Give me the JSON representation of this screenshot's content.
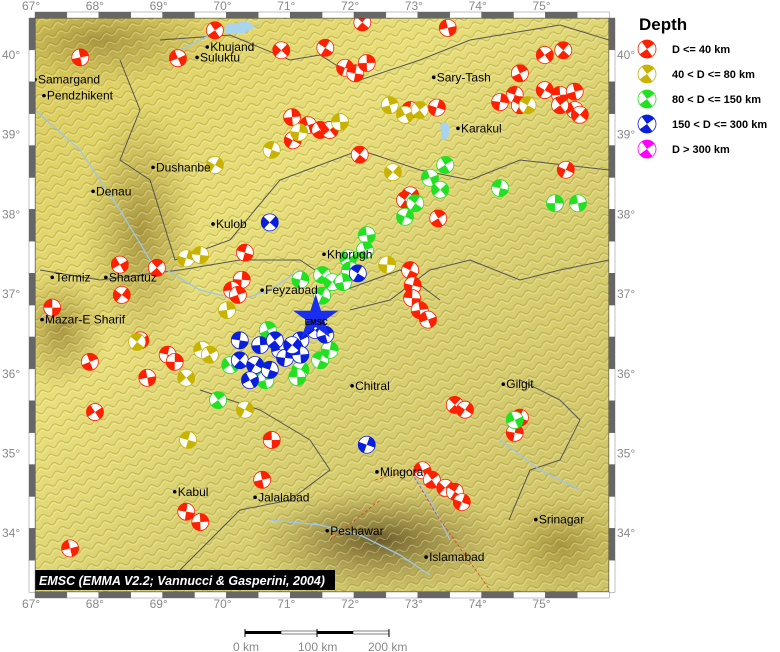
{
  "legend": {
    "title": "Depth",
    "items": [
      {
        "label": "D <= 40 km",
        "color": "#ff2000",
        "class": "r"
      },
      {
        "label": "40 < D <= 80 km",
        "color": "#c8b400",
        "class": "y"
      },
      {
        "label": "80 < D <= 150 km",
        "color": "#22e022",
        "class": "g"
      },
      {
        "label": "150 < D <= 300 km",
        "color": "#0a1ee0",
        "class": "b"
      },
      {
        "label": "D > 300 km",
        "color": "#ff00ff",
        "class": "m"
      }
    ]
  },
  "axes": {
    "lon_range": [
      67,
      76
    ],
    "lat_range": [
      33.2,
      40.45
    ],
    "lon_ticks": [
      "67°",
      "68°",
      "69°",
      "70°",
      "71°",
      "72°",
      "73°",
      "74°",
      "75°"
    ],
    "lat_ticks": [
      "40°",
      "39°",
      "38°",
      "37°",
      "36°",
      "35°",
      "34°"
    ]
  },
  "credit": "EMSC (EMMA V2.2; Vannucci & Gasperini, 2004)",
  "scale_bar": {
    "labels": [
      "0 km",
      "100 km",
      "200 km"
    ]
  },
  "epicenter": {
    "label": "EMSC",
    "lon": 71.4,
    "lat": 36.7,
    "color": "#1a2ef0"
  },
  "cities": [
    {
      "name": "Khujand",
      "lon": 69.7,
      "lat": 40.1
    },
    {
      "name": "Suluktu",
      "lon": 69.54,
      "lat": 39.97
    },
    {
      "name": "Samargand",
      "lon": 67.0,
      "lat": 39.69
    },
    {
      "name": "Pendzhikent",
      "lon": 67.14,
      "lat": 39.49
    },
    {
      "name": "Dushanbe",
      "lon": 68.85,
      "lat": 38.59
    },
    {
      "name": "Denau",
      "lon": 67.91,
      "lat": 38.29
    },
    {
      "name": "Kulob",
      "lon": 69.79,
      "lat": 37.88
    },
    {
      "name": "Termiz",
      "lon": 67.27,
      "lat": 37.21
    },
    {
      "name": "Shaartuz",
      "lon": 68.11,
      "lat": 37.21
    },
    {
      "name": "Mazar-E Sharif",
      "lon": 67.11,
      "lat": 36.68
    },
    {
      "name": "Feyzabad",
      "lon": 70.56,
      "lat": 37.05
    },
    {
      "name": "Khorugh",
      "lon": 71.53,
      "lat": 37.5
    },
    {
      "name": "Sary-Tash",
      "lon": 73.25,
      "lat": 39.72
    },
    {
      "name": "Karakul",
      "lon": 73.63,
      "lat": 39.08
    },
    {
      "name": "Chitral",
      "lon": 71.97,
      "lat": 35.85
    },
    {
      "name": "Gilgit",
      "lon": 74.34,
      "lat": 35.87
    },
    {
      "name": "Kabul",
      "lon": 69.19,
      "lat": 34.52
    },
    {
      "name": "Jalalabad",
      "lon": 70.45,
      "lat": 34.45
    },
    {
      "name": "Peshawar",
      "lon": 71.58,
      "lat": 34.03
    },
    {
      "name": "Mingora",
      "lon": 72.36,
      "lat": 34.77
    },
    {
      "name": "Islamabad",
      "lon": 73.13,
      "lat": 33.7
    },
    {
      "name": "Srinagar",
      "lon": 74.85,
      "lat": 34.17
    }
  ],
  "events": [
    [
      "r",
      67.27,
      36.83
    ],
    [
      "r",
      67.71,
      39.97
    ],
    [
      "r",
      69.24,
      39.96
    ],
    [
      "r",
      69.82,
      40.31
    ],
    [
      "r",
      70.86,
      40.06
    ],
    [
      "r",
      71.55,
      40.09
    ],
    [
      "r",
      71.86,
      39.84
    ],
    [
      "r",
      72.02,
      39.77
    ],
    [
      "r",
      72.2,
      39.9
    ],
    [
      "r",
      73.47,
      40.34
    ],
    [
      "r",
      74.6,
      39.77
    ],
    [
      "r",
      74.99,
      40.0
    ],
    [
      "r",
      75.28,
      40.06
    ],
    [
      "r",
      74.99,
      39.56
    ],
    [
      "r",
      74.52,
      39.5
    ],
    [
      "r",
      74.29,
      39.41
    ],
    [
      "r",
      75.23,
      39.5
    ],
    [
      "r",
      75.46,
      39.54
    ],
    [
      "r",
      75.46,
      39.31
    ],
    [
      "r",
      75.23,
      39.37
    ],
    [
      "r",
      75.54,
      39.25
    ],
    [
      "r",
      74.6,
      39.37
    ],
    [
      "r",
      73.3,
      39.34
    ],
    [
      "r",
      72.88,
      39.31
    ],
    [
      "r",
      71.03,
      39.22
    ],
    [
      "r",
      71.28,
      39.12
    ],
    [
      "r",
      71.47,
      39.06
    ],
    [
      "r",
      71.62,
      39.06
    ],
    [
      "r",
      72.09,
      38.75
    ],
    [
      "r",
      71.04,
      38.93
    ],
    [
      "r",
      70.29,
      37.52
    ],
    [
      "r",
      70.24,
      37.18
    ],
    [
      "r",
      70.09,
      37.05
    ],
    [
      "r",
      70.18,
      36.99
    ],
    [
      "r",
      68.33,
      37.37
    ],
    [
      "r",
      68.91,
      37.33
    ],
    [
      "r",
      68.36,
      36.99
    ],
    [
      "r",
      72.88,
      37.3
    ],
    [
      "r",
      72.92,
      37.11
    ],
    [
      "r",
      72.91,
      36.95
    ],
    [
      "r",
      73.03,
      36.8
    ],
    [
      "r",
      73.16,
      36.68
    ],
    [
      "r",
      73.32,
      37.95
    ],
    [
      "r",
      72.88,
      38.24
    ],
    [
      "r",
      72.8,
      38.18
    ],
    [
      "r",
      75.32,
      38.56
    ],
    [
      "r",
      69.08,
      36.24
    ],
    [
      "r",
      69.19,
      36.15
    ],
    [
      "r",
      68.76,
      35.95
    ],
    [
      "r",
      67.86,
      36.15
    ],
    [
      "r",
      67.94,
      35.52
    ],
    [
      "r",
      73.58,
      35.61
    ],
    [
      "r",
      73.74,
      35.55
    ],
    [
      "r",
      74.6,
      35.45
    ],
    [
      "r",
      74.52,
      35.26
    ],
    [
      "r",
      70.71,
      35.17
    ],
    [
      "r",
      70.56,
      34.67
    ],
    [
      "r",
      73.07,
      34.79
    ],
    [
      "r",
      73.22,
      34.67
    ],
    [
      "r",
      73.43,
      34.57
    ],
    [
      "r",
      73.58,
      34.52
    ],
    [
      "r",
      73.69,
      34.39
    ],
    [
      "r",
      69.37,
      34.27
    ],
    [
      "r",
      69.59,
      34.14
    ],
    [
      "r",
      67.55,
      33.81
    ],
    [
      "r",
      69.54,
      33.41
    ],
    [
      "r",
      68.65,
      36.42
    ],
    [
      "r",
      72.13,
      40.41
    ],
    [
      "y",
      69.82,
      38.62
    ],
    [
      "y",
      70.71,
      38.81
    ],
    [
      "y",
      71.14,
      39.03
    ],
    [
      "y",
      71.78,
      39.16
    ],
    [
      "y",
      72.56,
      39.37
    ],
    [
      "y",
      72.8,
      39.25
    ],
    [
      "y",
      73.03,
      39.31
    ],
    [
      "y",
      72.61,
      38.53
    ],
    [
      "y",
      74.72,
      39.37
    ],
    [
      "y",
      69.37,
      37.45
    ],
    [
      "y",
      69.59,
      37.49
    ],
    [
      "y",
      70.01,
      36.8
    ],
    [
      "y",
      69.62,
      36.3
    ],
    [
      "y",
      69.74,
      36.24
    ],
    [
      "y",
      69.37,
      35.95
    ],
    [
      "y",
      68.6,
      36.4
    ],
    [
      "y",
      70.29,
      35.55
    ],
    [
      "y",
      69.4,
      35.17
    ],
    [
      "y",
      72.52,
      37.37
    ],
    [
      "g",
      72.2,
      37.74
    ],
    [
      "g",
      72.17,
      37.55
    ],
    [
      "g",
      71.91,
      37.45
    ],
    [
      "g",
      71.5,
      37.24
    ],
    [
      "g",
      71.66,
      37.15
    ],
    [
      "g",
      71.5,
      36.98
    ],
    [
      "g",
      71.16,
      37.18
    ],
    [
      "g",
      71.94,
      37.3
    ],
    [
      "g",
      71.83,
      37.15
    ],
    [
      "g",
      73.19,
      38.46
    ],
    [
      "g",
      73.43,
      38.62
    ],
    [
      "g",
      73.35,
      38.31
    ],
    [
      "g",
      72.96,
      38.14
    ],
    [
      "g",
      72.8,
      37.97
    ],
    [
      "g",
      74.29,
      38.33
    ],
    [
      "g",
      75.15,
      38.14
    ],
    [
      "g",
      75.51,
      38.14
    ],
    [
      "g",
      70.65,
      36.55
    ],
    [
      "g",
      70.06,
      36.11
    ],
    [
      "g",
      70.53,
      36.05
    ],
    [
      "g",
      71.16,
      36.05
    ],
    [
      "g",
      71.47,
      36.17
    ],
    [
      "g",
      71.62,
      36.3
    ],
    [
      "g",
      71.11,
      35.96
    ],
    [
      "g",
      70.61,
      35.92
    ],
    [
      "g",
      74.52,
      35.42
    ],
    [
      "g",
      69.87,
      35.67
    ],
    [
      "b",
      70.68,
      37.9
    ],
    [
      "b",
      72.06,
      37.26
    ],
    [
      "b",
      72.2,
      35.11
    ],
    [
      "b",
      70.21,
      36.42
    ],
    [
      "b",
      70.53,
      36.36
    ],
    [
      "b",
      70.84,
      36.3
    ],
    [
      "b",
      71.16,
      36.42
    ],
    [
      "b",
      71.39,
      36.55
    ],
    [
      "b",
      70.21,
      36.17
    ],
    [
      "b",
      70.45,
      36.11
    ],
    [
      "b",
      70.68,
      36.05
    ],
    [
      "b",
      70.92,
      36.2
    ],
    [
      "b",
      71.16,
      36.24
    ],
    [
      "b",
      71.55,
      36.49
    ],
    [
      "b",
      70.37,
      35.92
    ],
    [
      "b",
      70.76,
      36.42
    ],
    [
      "b",
      71.03,
      36.36
    ]
  ]
}
